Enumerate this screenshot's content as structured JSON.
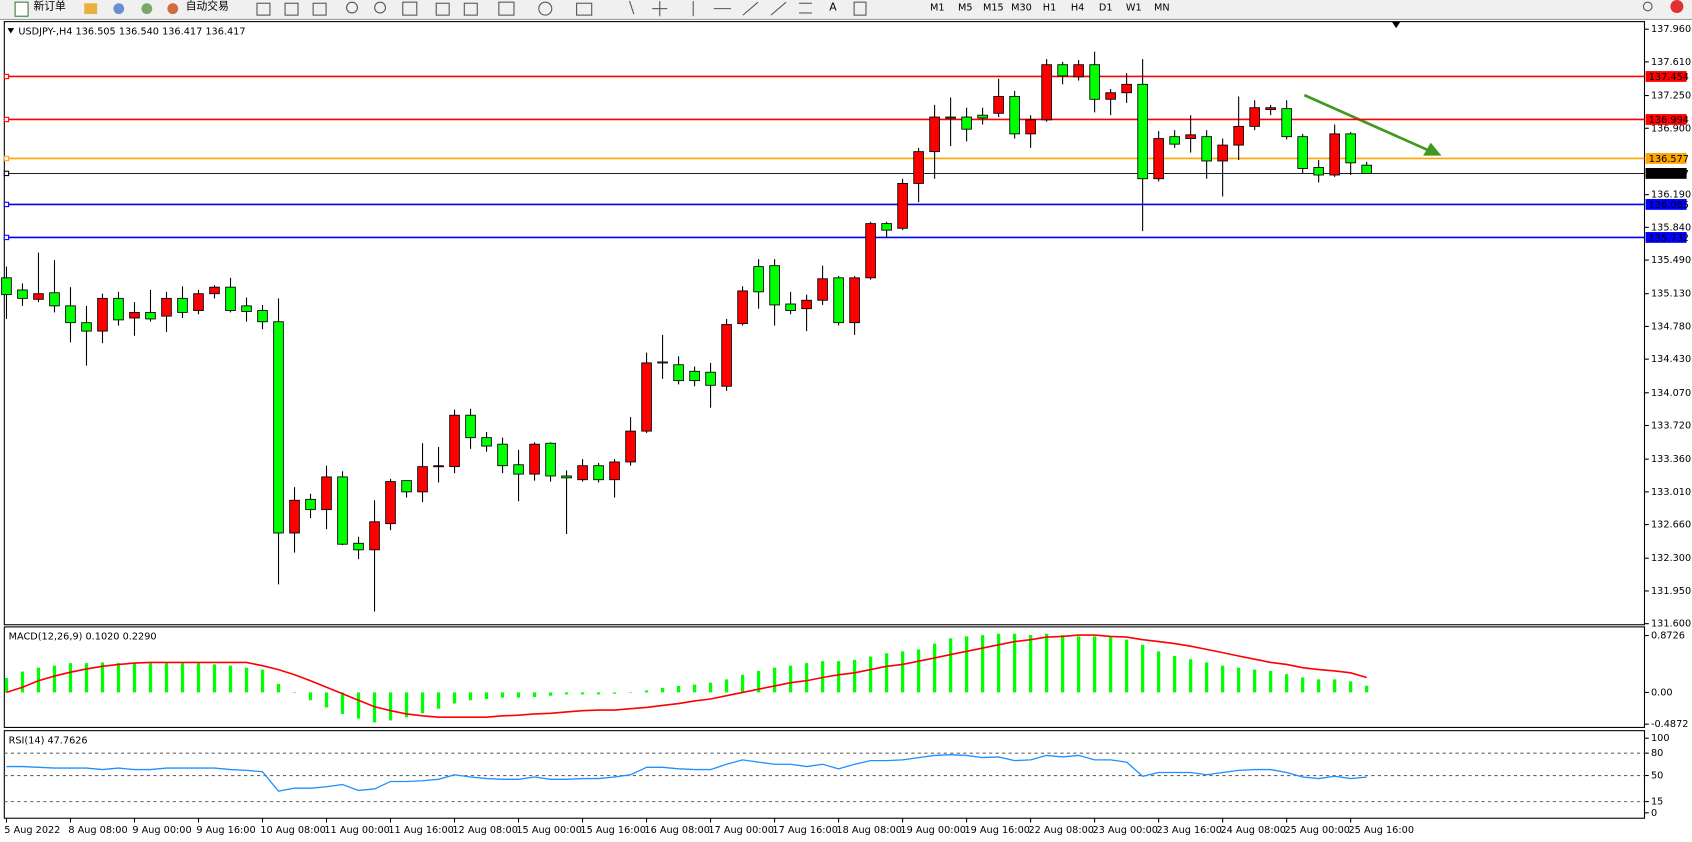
{
  "toolbar": {
    "new_order": "新订单",
    "auto_trading": "自动交易",
    "timeframes": [
      "M1",
      "M5",
      "M15",
      "M30",
      "H1",
      "H4",
      "D1",
      "W1",
      "MN"
    ]
  },
  "chart_data": [
    {
      "type": "candlestick",
      "title": "USDJPY-,H4  136.505 136.540 136.417 136.417",
      "categories": [
        "5 Aug 2022",
        null,
        null,
        null,
        "8 Aug 08:00",
        null,
        null,
        null,
        "9 Aug 00:00",
        null,
        null,
        null,
        "9 Aug 16:00",
        null,
        null,
        null,
        "10 Aug 08:00",
        null,
        null,
        null,
        "11 Aug 00:00",
        null,
        null,
        null,
        "11 Aug 16:00",
        null,
        null,
        null,
        "12 Aug 08:00",
        null,
        null,
        null,
        "15 Aug 00:00",
        null,
        null,
        null,
        "15 Aug 16:00",
        null,
        null,
        null,
        "16 Aug 08:00",
        null,
        null,
        null,
        "17 Aug 00:00",
        null,
        null,
        null,
        "17 Aug 16:00",
        null,
        null,
        null,
        "18 Aug 08:00",
        null,
        null,
        null,
        "19 Aug 00:00",
        null,
        null,
        null,
        "19 Aug 16:00",
        null,
        null,
        null,
        "22 Aug 08:00",
        null,
        null,
        null,
        "23 Aug 00:00",
        null,
        null,
        null,
        "23 Aug 16:00",
        null,
        null,
        null,
        "24 Aug 08:00",
        null,
        null,
        null,
        "25 Aug 00:00",
        null,
        null,
        null,
        "25 Aug 16:00",
        null
      ],
      "open": [
        135.3,
        135.17,
        135.07,
        135.14,
        135.0,
        134.82,
        134.73,
        135.08,
        134.87,
        134.93,
        134.89,
        135.08,
        134.95,
        135.13,
        135.2,
        135.0,
        134.95,
        134.83,
        132.57,
        132.93,
        132.82,
        133.17,
        132.46,
        132.39,
        132.67,
        133.13,
        133.01,
        133.28,
        133.28,
        133.83,
        133.59,
        133.52,
        133.3,
        133.2,
        133.53,
        133.18,
        133.14,
        133.29,
        133.14,
        133.33,
        133.66,
        134.4,
        134.37,
        134.3,
        134.29,
        134.14,
        134.81,
        135.42,
        135.43,
        135.02,
        134.97,
        135.06,
        135.3,
        134.82,
        135.3,
        135.88,
        135.83,
        136.31,
        136.65,
        137.02,
        137.02,
        137.04,
        137.06,
        137.24,
        136.84,
        136.99,
        137.58,
        137.45,
        137.58,
        137.21,
        137.28,
        137.37,
        136.36,
        136.81,
        136.79,
        136.81,
        136.55,
        136.72,
        136.92,
        137.1,
        137.11,
        136.81,
        136.48,
        136.4,
        136.84,
        136.505
      ],
      "high": [
        135.42,
        135.24,
        135.57,
        135.49,
        135.2,
        135.0,
        135.13,
        135.15,
        135.04,
        135.17,
        135.15,
        135.21,
        135.17,
        135.22,
        135.3,
        135.09,
        135.01,
        135.08,
        133.06,
        132.99,
        133.29,
        133.23,
        132.53,
        132.92,
        133.15,
        133.13,
        133.53,
        133.49,
        133.89,
        133.9,
        133.65,
        133.59,
        133.46,
        133.54,
        133.54,
        133.24,
        133.36,
        133.32,
        133.36,
        133.81,
        134.5,
        134.69,
        134.46,
        134.35,
        134.39,
        134.86,
        135.21,
        135.5,
        135.5,
        135.15,
        135.12,
        135.43,
        135.32,
        135.32,
        135.9,
        135.9,
        136.36,
        136.69,
        137.15,
        137.23,
        137.12,
        137.12,
        137.43,
        137.3,
        137.04,
        137.64,
        137.61,
        137.63,
        137.72,
        137.32,
        137.49,
        137.64,
        136.87,
        136.88,
        137.04,
        136.88,
        136.79,
        137.24,
        137.2,
        137.15,
        137.2,
        136.84,
        136.56,
        136.94,
        136.86,
        136.54
      ],
      "low": [
        134.86,
        135.0,
        135.04,
        134.93,
        134.61,
        134.36,
        134.6,
        134.79,
        134.68,
        134.83,
        134.72,
        134.87,
        134.91,
        135.08,
        134.93,
        134.83,
        134.75,
        132.02,
        132.36,
        132.73,
        132.61,
        132.44,
        132.29,
        131.73,
        132.6,
        132.95,
        132.9,
        133.11,
        133.21,
        133.47,
        133.44,
        133.21,
        132.91,
        133.13,
        133.12,
        132.56,
        133.12,
        133.11,
        132.95,
        133.29,
        133.64,
        134.22,
        134.16,
        134.14,
        133.91,
        134.09,
        134.79,
        134.97,
        134.79,
        134.91,
        134.73,
        135.01,
        134.79,
        134.69,
        135.28,
        135.73,
        135.81,
        136.11,
        136.36,
        136.71,
        136.76,
        136.94,
        137.02,
        136.79,
        136.69,
        136.97,
        137.37,
        137.41,
        137.07,
        137.04,
        137.17,
        135.8,
        136.33,
        136.69,
        136.64,
        136.36,
        136.17,
        136.56,
        136.88,
        137.04,
        136.78,
        136.42,
        136.32,
        136.38,
        136.4,
        136.417
      ],
      "close": [
        135.12,
        135.08,
        135.13,
        135.0,
        134.82,
        134.73,
        135.08,
        134.85,
        134.93,
        134.86,
        135.08,
        134.93,
        135.13,
        135.2,
        134.95,
        134.94,
        134.83,
        132.57,
        132.92,
        132.82,
        133.17,
        132.45,
        132.39,
        132.69,
        133.12,
        133.01,
        133.28,
        133.29,
        133.83,
        133.59,
        133.5,
        133.29,
        133.2,
        133.52,
        133.18,
        133.16,
        133.29,
        133.14,
        133.33,
        133.66,
        134.39,
        134.39,
        134.2,
        134.2,
        134.15,
        134.8,
        135.16,
        135.15,
        135.01,
        134.95,
        135.06,
        135.29,
        134.82,
        135.3,
        135.88,
        135.81,
        136.31,
        136.65,
        137.02,
        137.01,
        136.89,
        137.01,
        137.24,
        136.84,
        136.99,
        137.58,
        137.46,
        137.58,
        137.21,
        137.28,
        137.37,
        136.36,
        136.79,
        136.73,
        136.83,
        136.55,
        136.72,
        136.92,
        137.12,
        137.12,
        136.81,
        136.47,
        136.4,
        136.84,
        136.53,
        136.417
      ],
      "up_color": "#ff0000",
      "down_color": "#00ff00",
      "ylim": [
        131.6,
        137.96
      ],
      "yticks": [
        {
          "value": 137.96,
          "label": "137.960"
        },
        {
          "value": 137.61,
          "label": "137.610"
        },
        {
          "value": 137.25,
          "label": "137.250"
        },
        {
          "value": 136.9,
          "label": "136.900"
        },
        {
          "value": 136.19,
          "label": "136.190"
        },
        {
          "value": 135.84,
          "label": "135.840"
        },
        {
          "value": 135.49,
          "label": "135.490"
        },
        {
          "value": 135.13,
          "label": "135.130"
        },
        {
          "value": 134.78,
          "label": "134.780"
        },
        {
          "value": 134.43,
          "label": "134.430"
        },
        {
          "value": 134.07,
          "label": "134.070"
        },
        {
          "value": 133.72,
          "label": "133.720"
        },
        {
          "value": 133.36,
          "label": "133.360"
        },
        {
          "value": 133.01,
          "label": "133.010"
        },
        {
          "value": 132.66,
          "label": "132.660"
        },
        {
          "value": 132.3,
          "label": "132.300"
        },
        {
          "value": 131.95,
          "label": "131.950"
        },
        {
          "value": 131.6,
          "label": "131.600"
        }
      ],
      "hlines": [
        {
          "value": 137.454,
          "color": "#ff0000"
        },
        {
          "value": 136.994,
          "color": "#ff0000"
        },
        {
          "value": 136.577,
          "color": "#ffa500"
        },
        {
          "value": 136.417,
          "color": "#000000"
        },
        {
          "value": 136.085,
          "color": "#0000ff"
        },
        {
          "value": 135.732,
          "color": "#0000ff"
        }
      ]
    },
    {
      "type": "macd",
      "title": "MACD(12,26,9) 0.1020 0.2290",
      "histogram": [
        0.22,
        0.32,
        0.38,
        0.41,
        0.45,
        0.45,
        0.46,
        0.45,
        0.45,
        0.45,
        0.45,
        0.45,
        0.45,
        0.43,
        0.41,
        0.38,
        0.35,
        0.13,
        0,
        -0.12,
        -0.23,
        -0.33,
        -0.4,
        -0.46,
        -0.43,
        -0.38,
        -0.32,
        -0.25,
        -0.17,
        -0.12,
        -0.1,
        -0.08,
        -0.08,
        -0.07,
        -0.05,
        -0.03,
        -0.03,
        -0.03,
        -0.02,
        0,
        0.03,
        0.07,
        0.1,
        0.12,
        0.15,
        0.2,
        0.27,
        0.33,
        0.38,
        0.41,
        0.45,
        0.48,
        0.48,
        0.5,
        0.55,
        0.6,
        0.63,
        0.66,
        0.75,
        0.83,
        0.86,
        0.88,
        0.9,
        0.9,
        0.88,
        0.9,
        0.88,
        0.86,
        0.86,
        0.85,
        0.81,
        0.73,
        0.63,
        0.56,
        0.51,
        0.46,
        0.41,
        0.38,
        0.35,
        0.33,
        0.28,
        0.23,
        0.2,
        0.2,
        0.17,
        0.102
      ],
      "signal": [
        0,
        0.08,
        0.18,
        0.25,
        0.31,
        0.36,
        0.4,
        0.43,
        0.45,
        0.46,
        0.46,
        0.46,
        0.46,
        0.46,
        0.46,
        0.46,
        0.41,
        0.35,
        0.27,
        0.18,
        0.08,
        -0.02,
        -0.12,
        -0.22,
        -0.28,
        -0.33,
        -0.36,
        -0.38,
        -0.38,
        -0.38,
        -0.38,
        -0.36,
        -0.35,
        -0.33,
        -0.32,
        -0.3,
        -0.28,
        -0.27,
        -0.27,
        -0.25,
        -0.23,
        -0.2,
        -0.17,
        -0.13,
        -0.1,
        -0.05,
        0,
        0.05,
        0.1,
        0.15,
        0.18,
        0.23,
        0.27,
        0.3,
        0.35,
        0.4,
        0.43,
        0.48,
        0.53,
        0.58,
        0.63,
        0.68,
        0.73,
        0.78,
        0.81,
        0.85,
        0.86,
        0.88,
        0.88,
        0.86,
        0.85,
        0.81,
        0.78,
        0.75,
        0.71,
        0.66,
        0.61,
        0.56,
        0.51,
        0.46,
        0.43,
        0.38,
        0.35,
        0.33,
        0.3,
        0.229
      ],
      "histogram_color": "#00ff00",
      "signal_color": "#ff0000",
      "ylim": [
        -0.4872,
        0.8726
      ],
      "yticks": [
        0.8726,
        {
          "value": 0,
          "label": "0.00"
        },
        -0.4872
      ]
    },
    {
      "type": "line",
      "title": "RSI(14) 47.7626",
      "values": [
        62,
        62,
        61,
        60,
        60,
        60,
        58,
        60,
        58,
        58,
        60,
        60,
        60,
        60,
        58,
        57,
        55,
        29,
        33,
        33,
        35,
        38,
        30,
        32,
        42,
        42,
        43,
        45,
        51,
        48,
        46,
        45,
        45,
        48,
        45,
        45,
        46,
        46,
        48,
        51,
        61,
        61,
        59,
        58,
        58,
        65,
        71,
        68,
        65,
        65,
        62,
        65,
        59,
        65,
        70,
        70,
        71,
        74,
        77,
        78,
        77,
        74,
        75,
        70,
        71,
        77,
        75,
        77,
        71,
        71,
        68,
        49,
        54,
        54,
        54,
        51,
        54,
        57,
        58,
        58,
        54,
        48,
        46,
        49,
        46,
        47.7626
      ],
      "color": "#1e90ff",
      "ylim": [
        0,
        100
      ],
      "yticks": [
        100,
        80,
        50,
        15,
        0
      ]
    }
  ]
}
